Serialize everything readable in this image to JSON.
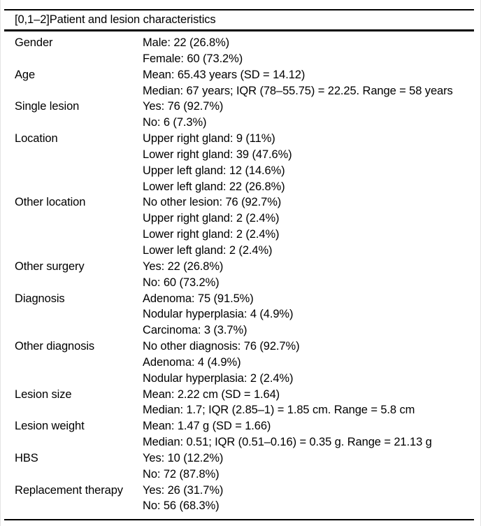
{
  "table": {
    "title": "[0,1–2]Patient and lesion characteristics",
    "rows": [
      {
        "label": "Gender",
        "lines": [
          "Male: 22 (26.8%)",
          "Female: 60 (73.2%)"
        ]
      },
      {
        "label": "Age",
        "lines": [
          "Mean: 65.43 years (SD = 14.12)",
          "Median: 67 years; IQR (78–55.75) = 22.25. Range = 58 years"
        ]
      },
      {
        "label": "Single lesion",
        "lines": [
          "Yes: 76 (92.7%)",
          "No: 6 (7.3%)"
        ]
      },
      {
        "label": "Location",
        "lines": [
          "Upper right gland: 9 (11%)",
          "Lower right gland: 39 (47.6%)",
          "Upper left gland: 12 (14.6%)",
          "Lower left gland: 22 (26.8%)"
        ]
      },
      {
        "label": "Other location",
        "lines": [
          "No other lesion: 76 (92.7%)",
          "Upper right gland: 2 (2.4%)",
          "Lower right gland: 2 (2.4%)",
          "Lower left gland: 2 (2.4%)"
        ]
      },
      {
        "label": "Other surgery",
        "lines": [
          "Yes: 22 (26.8%)",
          "No: 60 (73.2%)"
        ]
      },
      {
        "label": "Diagnosis",
        "lines": [
          "Adenoma: 75 (91.5%)",
          "Nodular hyperplasia: 4 (4.9%)",
          "Carcinoma: 3 (3.7%)"
        ]
      },
      {
        "label": "Other diagnosis",
        "lines": [
          "No other diagnosis: 76 (92.7%)",
          "Adenoma: 4 (4.9%)",
          "Nodular hyperplasia: 2 (2.4%)"
        ]
      },
      {
        "label": "Lesion size",
        "lines": [
          "Mean: 2.22 cm (SD = 1.64)",
          "Median: 1.7; IQR (2.85–1) = 1.85 cm. Range = 5.8 cm"
        ]
      },
      {
        "label": "Lesion weight",
        "lines": [
          "Mean: 1.47 g (SD = 1.66)",
          "Median: 0.51; IQR (0.51–0.16) = 0.35 g. Range = 21.13 g"
        ]
      },
      {
        "label": "HBS",
        "lines": [
          "Yes: 10 (12.2%)",
          "No: 72 (87.8%)"
        ]
      },
      {
        "label": "Replacement therapy",
        "lines": [
          "Yes: 26 (31.7%)",
          "No: 56 (68.3%)"
        ]
      }
    ]
  }
}
